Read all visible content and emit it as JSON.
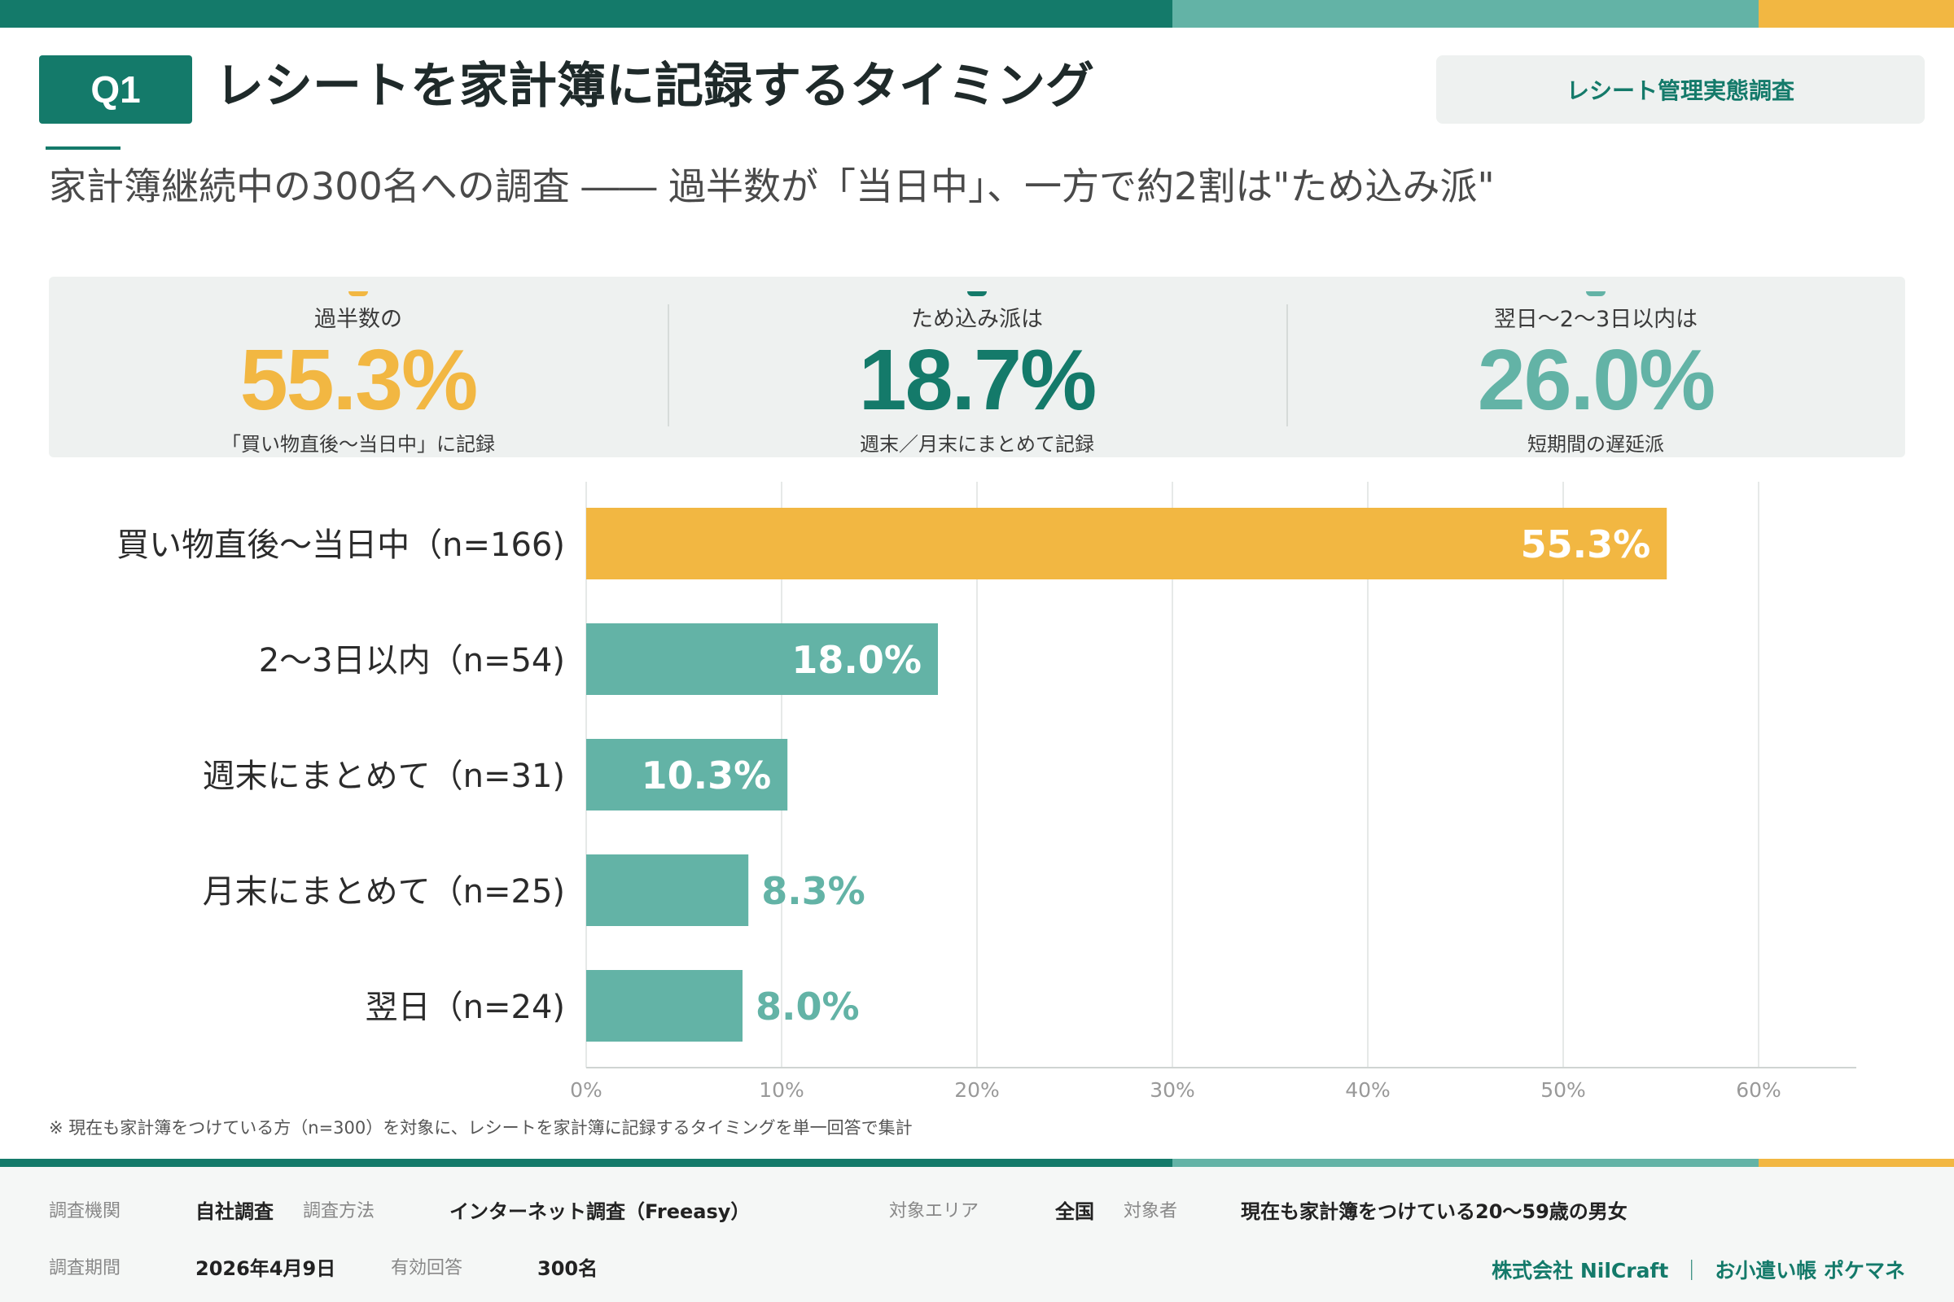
{
  "header": {
    "badge": "Q1",
    "title": "レシートを家計簿に記録するタイミング",
    "tag": "レシート管理実態調査",
    "subtitle": "家計簿継続中の300名への調査 ―― 過半数が「当日中」、一方で約2割は\"ため込み派\""
  },
  "kpis": [
    {
      "label": "過半数の",
      "value": "55.3%",
      "caption": "「買い物直後〜当日中」に記録",
      "color": "#f2b742"
    },
    {
      "label": "ため込み派は",
      "value": "18.7%",
      "caption": "週末／月末にまとめて記録",
      "color": "#147a6a"
    },
    {
      "label": "翌日〜2〜3日以内は",
      "value": "26.0%",
      "caption": "短期間の遅延派",
      "color": "#63b3a6"
    }
  ],
  "chart_data": {
    "type": "bar",
    "orientation": "horizontal",
    "categories": [
      "買い物直後〜当日中（n=166)",
      "2〜3日以内（n=54)",
      "週末にまとめて（n=31)",
      "月末にまとめて（n=25)",
      "翌日（n=24)"
    ],
    "values": [
      55.3,
      18.0,
      10.3,
      8.3,
      8.0
    ],
    "value_labels": [
      "55.3%",
      "18.0%",
      "10.3%",
      "8.3%",
      "8.0%"
    ],
    "bar_colors": [
      "#f2b742",
      "#63b3a6",
      "#63b3a6",
      "#63b3a6",
      "#63b3a6"
    ],
    "xlim": [
      0,
      65
    ],
    "xticks": [
      0,
      10,
      20,
      30,
      40,
      50,
      60
    ],
    "xtick_labels": [
      "0%",
      "10%",
      "20%",
      "30%",
      "40%",
      "50%",
      "60%"
    ],
    "grid": true,
    "xlabel": "",
    "ylabel": ""
  },
  "footnote": "※ 現在も家計簿をつけている方（n=300）を対象に、レシートを家計簿に記録するタイミングを単一回答で集計",
  "footer": {
    "org_key": "調査機関",
    "org_val": "自社調査",
    "method_key": "調査方法",
    "method_val": "インターネット調査（Freeasy）",
    "area_key": "対象エリア",
    "area_val": "全国",
    "target_key": "対象者",
    "target_val": "現在も家計簿をつけている20〜59歳の男女",
    "period_key": "調査期間",
    "period_val": "2026年4月9日",
    "valid_key": "有効回答",
    "valid_val": "300名",
    "company": "株式会社 NilCraft",
    "separator": "｜",
    "product": "お小遣い帳 ポケマネ"
  },
  "colors": {
    "primary": "#147a6a",
    "secondary": "#63b3a6",
    "accent": "#f2b742"
  }
}
